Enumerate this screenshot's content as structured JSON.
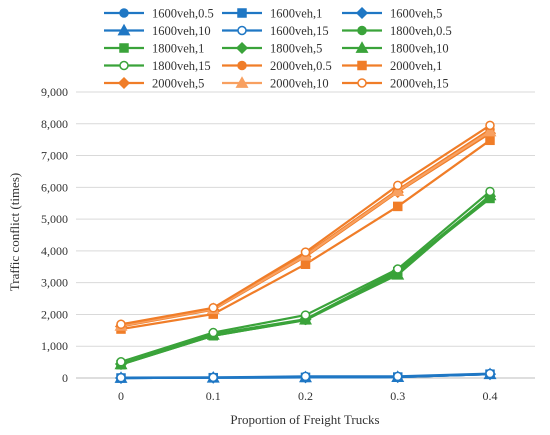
{
  "chart_data": {
    "type": "line",
    "title": "",
    "xlabel": "Proportion of Freight Trucks",
    "ylabel": "Traffic conflict (times)",
    "x": [
      0,
      0.1,
      0.2,
      0.3,
      0.4
    ],
    "x_tick_labels": [
      "0",
      "0.1",
      "0.2",
      "0.3",
      "0.4"
    ],
    "ylim": [
      0,
      9000
    ],
    "y_tick_labels": [
      "0",
      "1,000",
      "2,000",
      "3,000",
      "4,000",
      "5,000",
      "6,000",
      "7,000",
      "8,000",
      "9,000"
    ],
    "grid": "horizontal",
    "legend_position": "top",
    "colors": {
      "blue": "#1f77c4",
      "green": "#3aa33a",
      "orange": "#f07d28"
    },
    "series": [
      {
        "name": "1600veh,0.5",
        "color": "#1f77c4",
        "marker": "circle",
        "filled": true,
        "values": [
          0,
          10,
          20,
          30,
          120
        ]
      },
      {
        "name": "1600veh,1",
        "color": "#1f77c4",
        "marker": "square",
        "filled": true,
        "values": [
          0,
          10,
          20,
          30,
          120
        ]
      },
      {
        "name": "1600veh,5",
        "color": "#1f77c4",
        "marker": "diamond",
        "filled": true,
        "values": [
          0,
          10,
          20,
          30,
          120
        ]
      },
      {
        "name": "1600veh,10",
        "color": "#1f77c4",
        "marker": "triangle",
        "filled": true,
        "values": [
          0,
          10,
          20,
          30,
          120
        ]
      },
      {
        "name": "1600veh,15",
        "color": "#1f77c4",
        "marker": "circle",
        "filled": false,
        "values": [
          10,
          20,
          50,
          50,
          140
        ]
      },
      {
        "name": "1800veh,0.5",
        "color": "#3aa33a",
        "marker": "circle",
        "filled": true,
        "values": [
          430,
          1330,
          1820,
          3300,
          5700
        ]
      },
      {
        "name": "1800veh,1",
        "color": "#3aa33a",
        "marker": "square",
        "filled": true,
        "values": [
          420,
          1330,
          1830,
          3350,
          5650
        ]
      },
      {
        "name": "1800veh,5",
        "color": "#3aa33a",
        "marker": "diamond",
        "filled": true,
        "values": [
          440,
          1380,
          1850,
          3380,
          5720
        ]
      },
      {
        "name": "1800veh,10",
        "color": "#3aa33a",
        "marker": "triangle",
        "filled": true,
        "values": [
          430,
          1360,
          1840,
          3250,
          5750
        ]
      },
      {
        "name": "1800veh,15",
        "color": "#3aa33a",
        "marker": "circle",
        "filled": false,
        "values": [
          510,
          1430,
          1980,
          3430,
          5870
        ]
      },
      {
        "name": "2000veh,0.5",
        "color": "#f07d28",
        "marker": "circle",
        "filled": true,
        "values": [
          1650,
          2180,
          3880,
          5920,
          7820
        ]
      },
      {
        "name": "2000veh,1",
        "color": "#f07d28",
        "marker": "square",
        "filled": true,
        "values": [
          1540,
          2010,
          3580,
          5400,
          7480
        ]
      },
      {
        "name": "2000veh,5",
        "color": "#f07d28",
        "marker": "diamond",
        "filled": true,
        "values": [
          1620,
          2150,
          3820,
          5850,
          7700
        ]
      },
      {
        "name": "2000veh,10",
        "color": "#f8a060",
        "marker": "triangle",
        "filled": true,
        "values": [
          1640,
          2170,
          3850,
          5880,
          7760
        ]
      },
      {
        "name": "2000veh,15",
        "color": "#f07d28",
        "marker": "circle",
        "filled": false,
        "values": [
          1690,
          2210,
          3960,
          6060,
          7950
        ]
      }
    ]
  }
}
